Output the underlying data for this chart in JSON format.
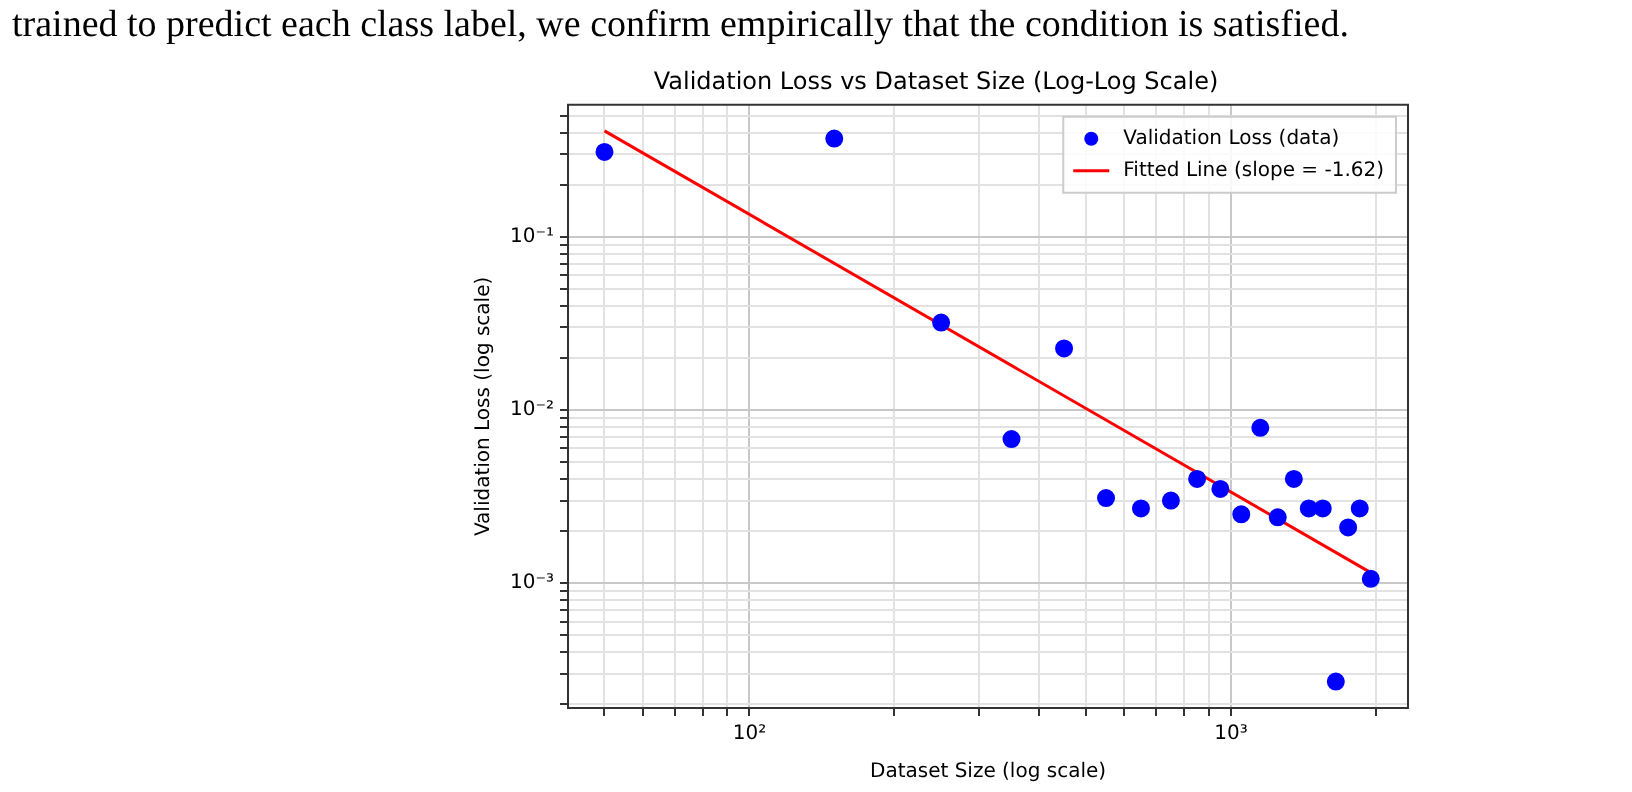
{
  "chart_data": {
    "type": "scatter",
    "title": "Validation Loss vs Dataset Size (Log-Log Scale)",
    "xlabel": "Dataset Size (log scale)",
    "ylabel": "Validation Loss (log scale)",
    "annotations": [
      "trained to predict each class label, we confirm empirically that the condition is satisfied."
    ],
    "log": "xy",
    "grid": true,
    "legend": "top right",
    "xlim": [
      42,
      2330
    ],
    "ylim": [
      0.00019,
      0.58
    ],
    "xticks": [
      {
        "value": 50,
        "label": null
      },
      {
        "value": 60,
        "label": null
      },
      {
        "value": 70,
        "label": null
      },
      {
        "value": 80,
        "label": null
      },
      {
        "value": 90,
        "label": null
      },
      {
        "value": 100,
        "label": "10²"
      },
      {
        "value": 200,
        "label": null
      },
      {
        "value": 300,
        "label": null
      },
      {
        "value": 400,
        "label": null
      },
      {
        "value": 500,
        "label": null
      },
      {
        "value": 600,
        "label": null
      },
      {
        "value": 700,
        "label": null
      },
      {
        "value": 800,
        "label": null
      },
      {
        "value": 900,
        "label": null
      },
      {
        "value": 1000,
        "label": "10³"
      },
      {
        "value": 2000,
        "label": null
      }
    ],
    "yticks": [
      {
        "value": 0.0002,
        "label": null
      },
      {
        "value": 0.0003,
        "label": null
      },
      {
        "value": 0.0004,
        "label": null
      },
      {
        "value": 0.0005,
        "label": null
      },
      {
        "value": 0.0006,
        "label": null
      },
      {
        "value": 0.0007,
        "label": null
      },
      {
        "value": 0.0008,
        "label": null
      },
      {
        "value": 0.0009,
        "label": null
      },
      {
        "value": 0.001,
        "label": "10⁻³"
      },
      {
        "value": 0.002,
        "label": null
      },
      {
        "value": 0.003,
        "label": null
      },
      {
        "value": 0.004,
        "label": null
      },
      {
        "value": 0.005,
        "label": null
      },
      {
        "value": 0.006,
        "label": null
      },
      {
        "value": 0.007,
        "label": null
      },
      {
        "value": 0.008,
        "label": null
      },
      {
        "value": 0.009,
        "label": null
      },
      {
        "value": 0.01,
        "label": "10⁻²"
      },
      {
        "value": 0.02,
        "label": null
      },
      {
        "value": 0.03,
        "label": null
      },
      {
        "value": 0.04,
        "label": null
      },
      {
        "value": 0.05,
        "label": null
      },
      {
        "value": 0.06,
        "label": null
      },
      {
        "value": 0.07,
        "label": null
      },
      {
        "value": 0.08,
        "label": null
      },
      {
        "value": 0.09,
        "label": null
      },
      {
        "value": 0.1,
        "label": "10⁻¹"
      },
      {
        "value": 0.2,
        "label": null
      },
      {
        "value": 0.3,
        "label": null
      },
      {
        "value": 0.4,
        "label": null
      },
      {
        "value": 0.5,
        "label": null
      }
    ],
    "series": [
      {
        "name": "Validation Loss (data)",
        "type": "scatter",
        "marker": "circle",
        "color": "#0000ff",
        "x": [
          50,
          150,
          250,
          350,
          450,
          550,
          650,
          750,
          850,
          950,
          1050,
          1150,
          1250,
          1350,
          1450,
          1550,
          1650,
          1750,
          1850,
          1950
        ],
        "values": [
          0.31,
          0.37,
          0.032,
          0.0068,
          0.0227,
          0.0031,
          0.0027,
          0.003,
          0.004,
          0.0035,
          0.0025,
          0.0079,
          0.0024,
          0.004,
          0.0027,
          0.0027,
          0.00027,
          0.0021,
          0.0027,
          0.00106
        ]
      },
      {
        "name": "Fitted Line (slope = -1.62)",
        "type": "line",
        "marker": "none",
        "color": "#ff0000",
        "line_style": "solid",
        "x": [
          50,
          1950
        ],
        "values": [
          0.41,
          0.00115
        ]
      }
    ]
  }
}
